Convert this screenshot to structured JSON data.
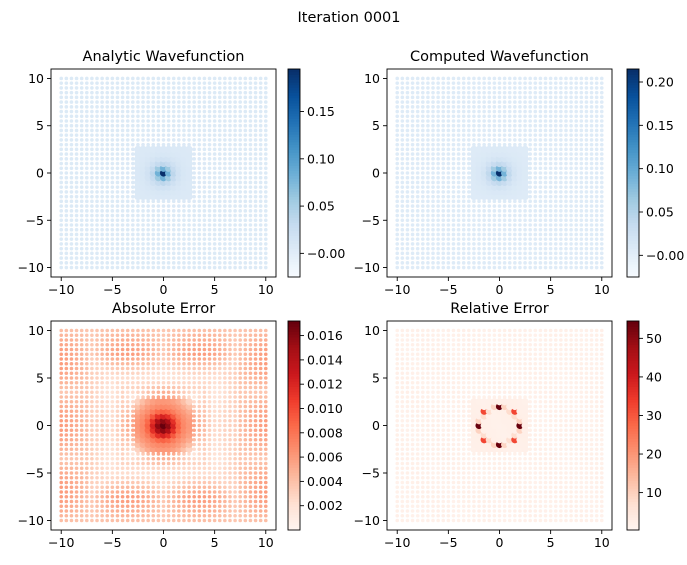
{
  "figure": {
    "suptitle": "Iteration 0001"
  },
  "chart_data": [
    {
      "type": "scatter",
      "title": "Analytic Wavefunction",
      "xlabel": "",
      "ylabel": "",
      "xlim": [
        -11,
        11
      ],
      "ylim": [
        -11,
        11
      ],
      "xticks": [
        -10,
        -5,
        0,
        5,
        10
      ],
      "yticks": [
        -10,
        -5,
        0,
        5,
        10
      ],
      "grid": false,
      "colormap": "Blues",
      "colorbar": {
        "vmin": -0.025,
        "vmax": 0.195,
        "ticks": [
          "-0.00",
          "0.05",
          "0.10",
          "0.15"
        ],
        "tick_values": [
          0.0,
          0.05,
          0.1,
          0.15
        ]
      },
      "description_points": {
        "grid_spacing": 0.5,
        "range": [
          -10,
          10
        ],
        "peak_value": 0.195,
        "peak_at": [
          0,
          0
        ],
        "background_value": 0.005
      }
    },
    {
      "type": "scatter",
      "title": "Computed Wavefunction",
      "xlabel": "",
      "ylabel": "",
      "xlim": [
        -11,
        11
      ],
      "ylim": [
        -11,
        11
      ],
      "xticks": [
        -10,
        -5,
        0,
        5,
        10
      ],
      "yticks": [
        -10,
        -5,
        0,
        5,
        10
      ],
      "grid": false,
      "colormap": "Blues",
      "colorbar": {
        "vmin": -0.025,
        "vmax": 0.215,
        "ticks": [
          "-0.00",
          "0.05",
          "0.10",
          "0.15",
          "0.20"
        ],
        "tick_values": [
          0.0,
          0.05,
          0.1,
          0.15,
          0.2
        ]
      },
      "description_points": {
        "grid_spacing": 0.5,
        "range": [
          -10,
          10
        ],
        "peak_value": 0.215,
        "peak_at": [
          0,
          0
        ],
        "background_value": 0.005
      }
    },
    {
      "type": "scatter",
      "title": "Absolute Error",
      "xlabel": "",
      "ylabel": "",
      "xlim": [
        -11,
        11
      ],
      "ylim": [
        -11,
        11
      ],
      "xticks": [
        -10,
        -5,
        0,
        5,
        10
      ],
      "yticks": [
        -10,
        -5,
        0,
        5,
        10
      ],
      "grid": false,
      "colormap": "Reds",
      "colorbar": {
        "vmin": 0.0,
        "vmax": 0.0172,
        "ticks": [
          "0.002",
          "0.004",
          "0.006",
          "0.008",
          "0.010",
          "0.012",
          "0.014",
          "0.016"
        ],
        "tick_values": [
          0.002,
          0.004,
          0.006,
          0.008,
          0.01,
          0.012,
          0.014,
          0.016
        ]
      },
      "description_points": {
        "grid_spacing": 0.5,
        "range": [
          -10,
          10
        ],
        "peak_value": 0.0172,
        "peak_at": [
          0,
          0
        ],
        "outer_band_value": 0.006
      }
    },
    {
      "type": "scatter",
      "title": "Relative Error",
      "xlabel": "",
      "ylabel": "",
      "xlim": [
        -11,
        11
      ],
      "ylim": [
        -11,
        11
      ],
      "xticks": [
        -10,
        -5,
        0,
        5,
        10
      ],
      "yticks": [
        -10,
        -5,
        0,
        5,
        10
      ],
      "grid": false,
      "colormap": "Reds",
      "colorbar": {
        "vmin": 0.3,
        "vmax": 54.5,
        "ticks": [
          "10",
          "20",
          "30",
          "40",
          "50"
        ],
        "tick_values": [
          10,
          20,
          30,
          40,
          50
        ]
      },
      "description_points": {
        "grid_spacing": 0.5,
        "range": [
          -10,
          10
        ],
        "background_value": 1.5,
        "ring_radius": 2.0,
        "ring_peak_value": 54
      }
    }
  ]
}
